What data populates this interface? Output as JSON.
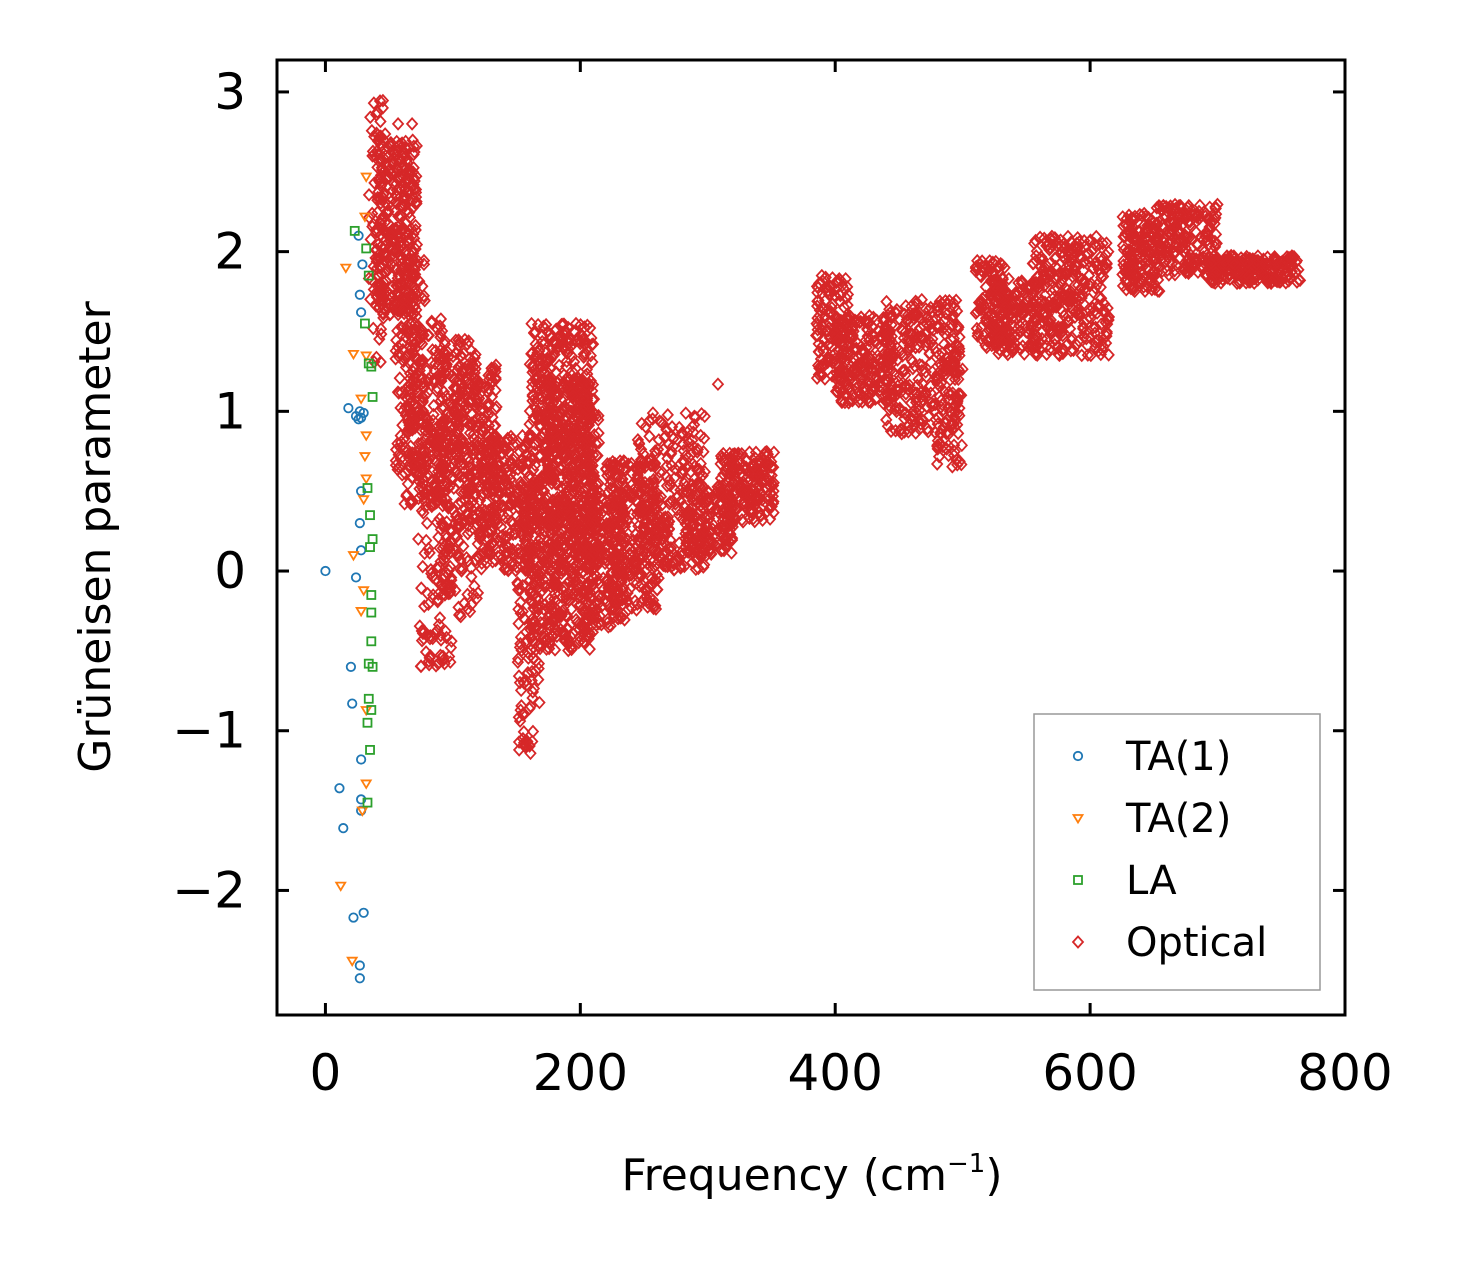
{
  "chart_data": {
    "type": "scatter",
    "title": "",
    "xlabel": "Frequency (cm",
    "xlabel_sup": "−1",
    "xlabel_close": ")",
    "ylabel": "Grüneisen parameter",
    "xlim": [
      -38,
      800
    ],
    "ylim": [
      -2.78,
      3.2
    ],
    "x_ticks": [
      0,
      200,
      400,
      600,
      800
    ],
    "x_tick_labels": [
      "0",
      "200",
      "400",
      "600",
      "800"
    ],
    "y_ticks": [
      -2,
      -1,
      0,
      1,
      2,
      3
    ],
    "y_tick_labels": [
      "−2",
      "−1",
      "0",
      "1",
      "2",
      "3"
    ],
    "grid": false,
    "legend_position": "bottom-right",
    "series": [
      {
        "name": "TA(1)",
        "marker": "circle",
        "color": "#1f77b4",
        "points": [
          [
            0,
            0
          ],
          [
            18,
            1.02
          ],
          [
            24,
            0.97
          ],
          [
            26,
            0.95
          ],
          [
            28,
            0.96
          ],
          [
            27,
            1.0
          ],
          [
            30,
            0.99
          ],
          [
            26,
            2.1
          ],
          [
            29,
            1.92
          ],
          [
            27,
            1.73
          ],
          [
            28,
            1.62
          ],
          [
            28,
            0.5
          ],
          [
            27,
            0.3
          ],
          [
            28,
            0.13
          ],
          [
            24,
            -0.04
          ],
          [
            20,
            -0.6
          ],
          [
            21,
            -0.83
          ],
          [
            28,
            -1.18
          ],
          [
            11,
            -1.36
          ],
          [
            28,
            -1.43
          ],
          [
            14,
            -1.61
          ],
          [
            28,
            -1.5
          ],
          [
            22,
            -2.17
          ],
          [
            30,
            -2.14
          ],
          [
            27,
            -2.47
          ],
          [
            27,
            -2.55
          ]
        ]
      },
      {
        "name": "TA(2)",
        "marker": "triangle-down",
        "color": "#ff7f0e",
        "points": [
          [
            32,
            2.47
          ],
          [
            31,
            2.22
          ],
          [
            16,
            1.9
          ],
          [
            22,
            1.36
          ],
          [
            32,
            1.35
          ],
          [
            28,
            1.08
          ],
          [
            32,
            0.85
          ],
          [
            31,
            0.72
          ],
          [
            32,
            0.58
          ],
          [
            30,
            0.45
          ],
          [
            22,
            0.1
          ],
          [
            30,
            -0.12
          ],
          [
            28,
            -0.25
          ],
          [
            32,
            -0.87
          ],
          [
            32,
            -1.33
          ],
          [
            29,
            -1.5
          ],
          [
            12,
            -1.97
          ],
          [
            21,
            -2.44
          ]
        ]
      },
      {
        "name": "LA",
        "marker": "square",
        "color": "#2ca02c",
        "points": [
          [
            23,
            2.13
          ],
          [
            32,
            2.02
          ],
          [
            34,
            1.85
          ],
          [
            31,
            1.55
          ],
          [
            34,
            1.3
          ],
          [
            36,
            1.28
          ],
          [
            37,
            1.09
          ],
          [
            33,
            0.52
          ],
          [
            35,
            0.35
          ],
          [
            37,
            0.2
          ],
          [
            35,
            0.15
          ],
          [
            36,
            -0.15
          ],
          [
            36,
            -0.26
          ],
          [
            36,
            -0.44
          ],
          [
            34,
            -0.58
          ],
          [
            37,
            -0.6
          ],
          [
            34,
            -0.8
          ],
          [
            36,
            -0.87
          ],
          [
            33,
            -0.95
          ],
          [
            35,
            -1.12
          ],
          [
            33,
            -1.45
          ]
        ]
      },
      {
        "name": "Optical",
        "marker": "diamond",
        "color": "#d62728",
        "clusters": [
          {
            "x": [
              34,
              48
            ],
            "y": [
              1.3,
              2.95
            ],
            "n": 70
          },
          {
            "x": [
              40,
              72
            ],
            "y": [
              1.6,
              2.7
            ],
            "n": 320
          },
          {
            "x": [
              55,
              78
            ],
            "y": [
              0.6,
              2.0
            ],
            "n": 160
          },
          {
            "x": [
              62,
              96
            ],
            "y": [
              0.4,
              1.6
            ],
            "n": 200
          },
          {
            "x": [
              72,
              100
            ],
            "y": [
              -0.6,
              1.0
            ],
            "n": 130
          },
          {
            "x": [
              88,
              120
            ],
            "y": [
              -0.3,
              1.45
            ],
            "n": 220
          },
          {
            "x": [
              100,
              135
            ],
            "y": [
              0.2,
              1.3
            ],
            "n": 220
          },
          {
            "x": [
              120,
              160
            ],
            "y": [
              0.0,
              0.85
            ],
            "n": 240
          },
          {
            "x": [
              150,
              168
            ],
            "y": [
              -1.15,
              0.6
            ],
            "n": 120
          },
          {
            "x": [
              160,
              210
            ],
            "y": [
              -0.5,
              1.55
            ],
            "n": 800
          },
          {
            "x": [
              175,
              215
            ],
            "y": [
              0.0,
              1.2
            ],
            "n": 320
          },
          {
            "x": [
              205,
              235
            ],
            "y": [
              -0.35,
              0.5
            ],
            "n": 200
          },
          {
            "x": [
              220,
              262
            ],
            "y": [
              -0.25,
              0.7
            ],
            "n": 260
          },
          {
            "x": [
              245,
              300
            ],
            "y": [
              0.0,
              1.0
            ],
            "n": 260
          },
          {
            "x": [
              280,
              320
            ],
            "y": [
              0.1,
              0.55
            ],
            "n": 160
          },
          {
            "x": [
              310,
              352
            ],
            "y": [
              0.3,
              0.75
            ],
            "n": 200
          },
          {
            "x": [
              385,
              410
            ],
            "y": [
              1.2,
              1.85
            ],
            "n": 120
          },
          {
            "x": [
              400,
              445
            ],
            "y": [
              1.05,
              1.6
            ],
            "n": 240
          },
          {
            "x": [
              440,
              498
            ],
            "y": [
              0.85,
              1.7
            ],
            "n": 280
          },
          {
            "x": [
              480,
              500
            ],
            "y": [
              0.65,
              1.4
            ],
            "n": 70
          },
          {
            "x": [
              510,
              535
            ],
            "y": [
              1.4,
              1.95
            ],
            "n": 120
          },
          {
            "x": [
              525,
              560
            ],
            "y": [
              1.35,
              1.85
            ],
            "n": 160
          },
          {
            "x": [
              555,
              615
            ],
            "y": [
              1.35,
              2.1
            ],
            "n": 320
          },
          {
            "x": [
              625,
              655
            ],
            "y": [
              1.75,
              2.25
            ],
            "n": 160
          },
          {
            "x": [
              650,
              700
            ],
            "y": [
              1.85,
              2.3
            ],
            "n": 200
          },
          {
            "x": [
              695,
              765
            ],
            "y": [
              1.8,
              1.98
            ],
            "n": 220
          }
        ],
        "points": [
          [
            68,
            2.8
          ],
          [
            57,
            2.8
          ],
          [
            45,
            2.9
          ],
          [
            38,
            2.93
          ],
          [
            308,
            1.17
          ],
          [
            152,
            -1.12
          ],
          [
            155,
            -1.05
          ],
          [
            98,
            -0.57
          ],
          [
            167,
            -0.68
          ],
          [
            222,
            -0.35
          ],
          [
            462,
            1.58
          ],
          [
            575,
            2.05
          ]
        ]
      }
    ]
  }
}
